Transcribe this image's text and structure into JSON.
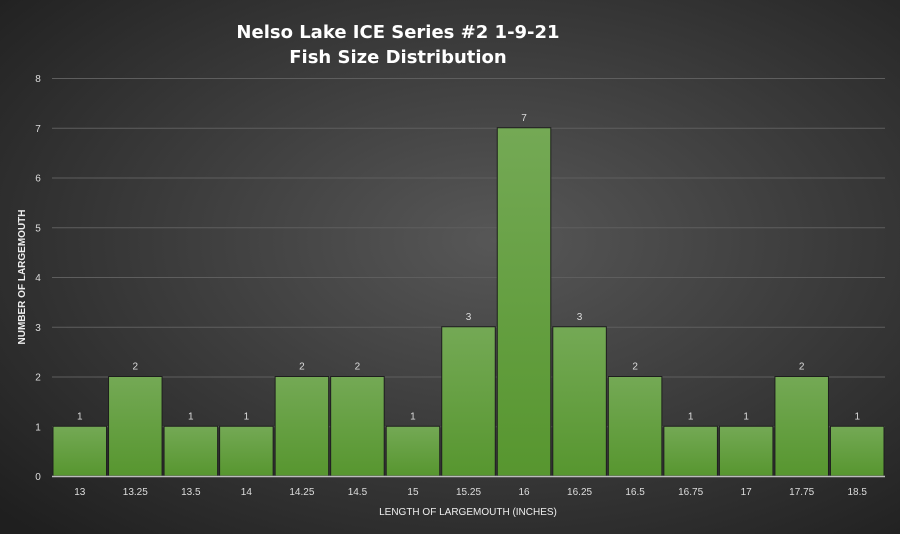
{
  "chart_data": {
    "type": "bar",
    "title": "Nelso Lake ICE Series #2 1-9-21",
    "subtitle": "Fish Size Distribution",
    "xlabel": "LENGTH OF LARGEMOUTH (INCHES)",
    "ylabel": "NUMBER OF LARGEMOUTH",
    "categories": [
      "13",
      "13.25",
      "13.5",
      "14",
      "14.25",
      "14.5",
      "15",
      "15.25",
      "16",
      "16.25",
      "16.5",
      "16.75",
      "17",
      "17.75",
      "18.5"
    ],
    "values": [
      1,
      2,
      1,
      1,
      2,
      2,
      1,
      3,
      7,
      3,
      2,
      1,
      1,
      2,
      1
    ],
    "ylim": [
      0,
      8
    ],
    "yticks": [
      0,
      1,
      2,
      3,
      4,
      5,
      6,
      7,
      8
    ],
    "grid": true,
    "bar_color": "#66a043",
    "background": "#3a3a3a"
  }
}
